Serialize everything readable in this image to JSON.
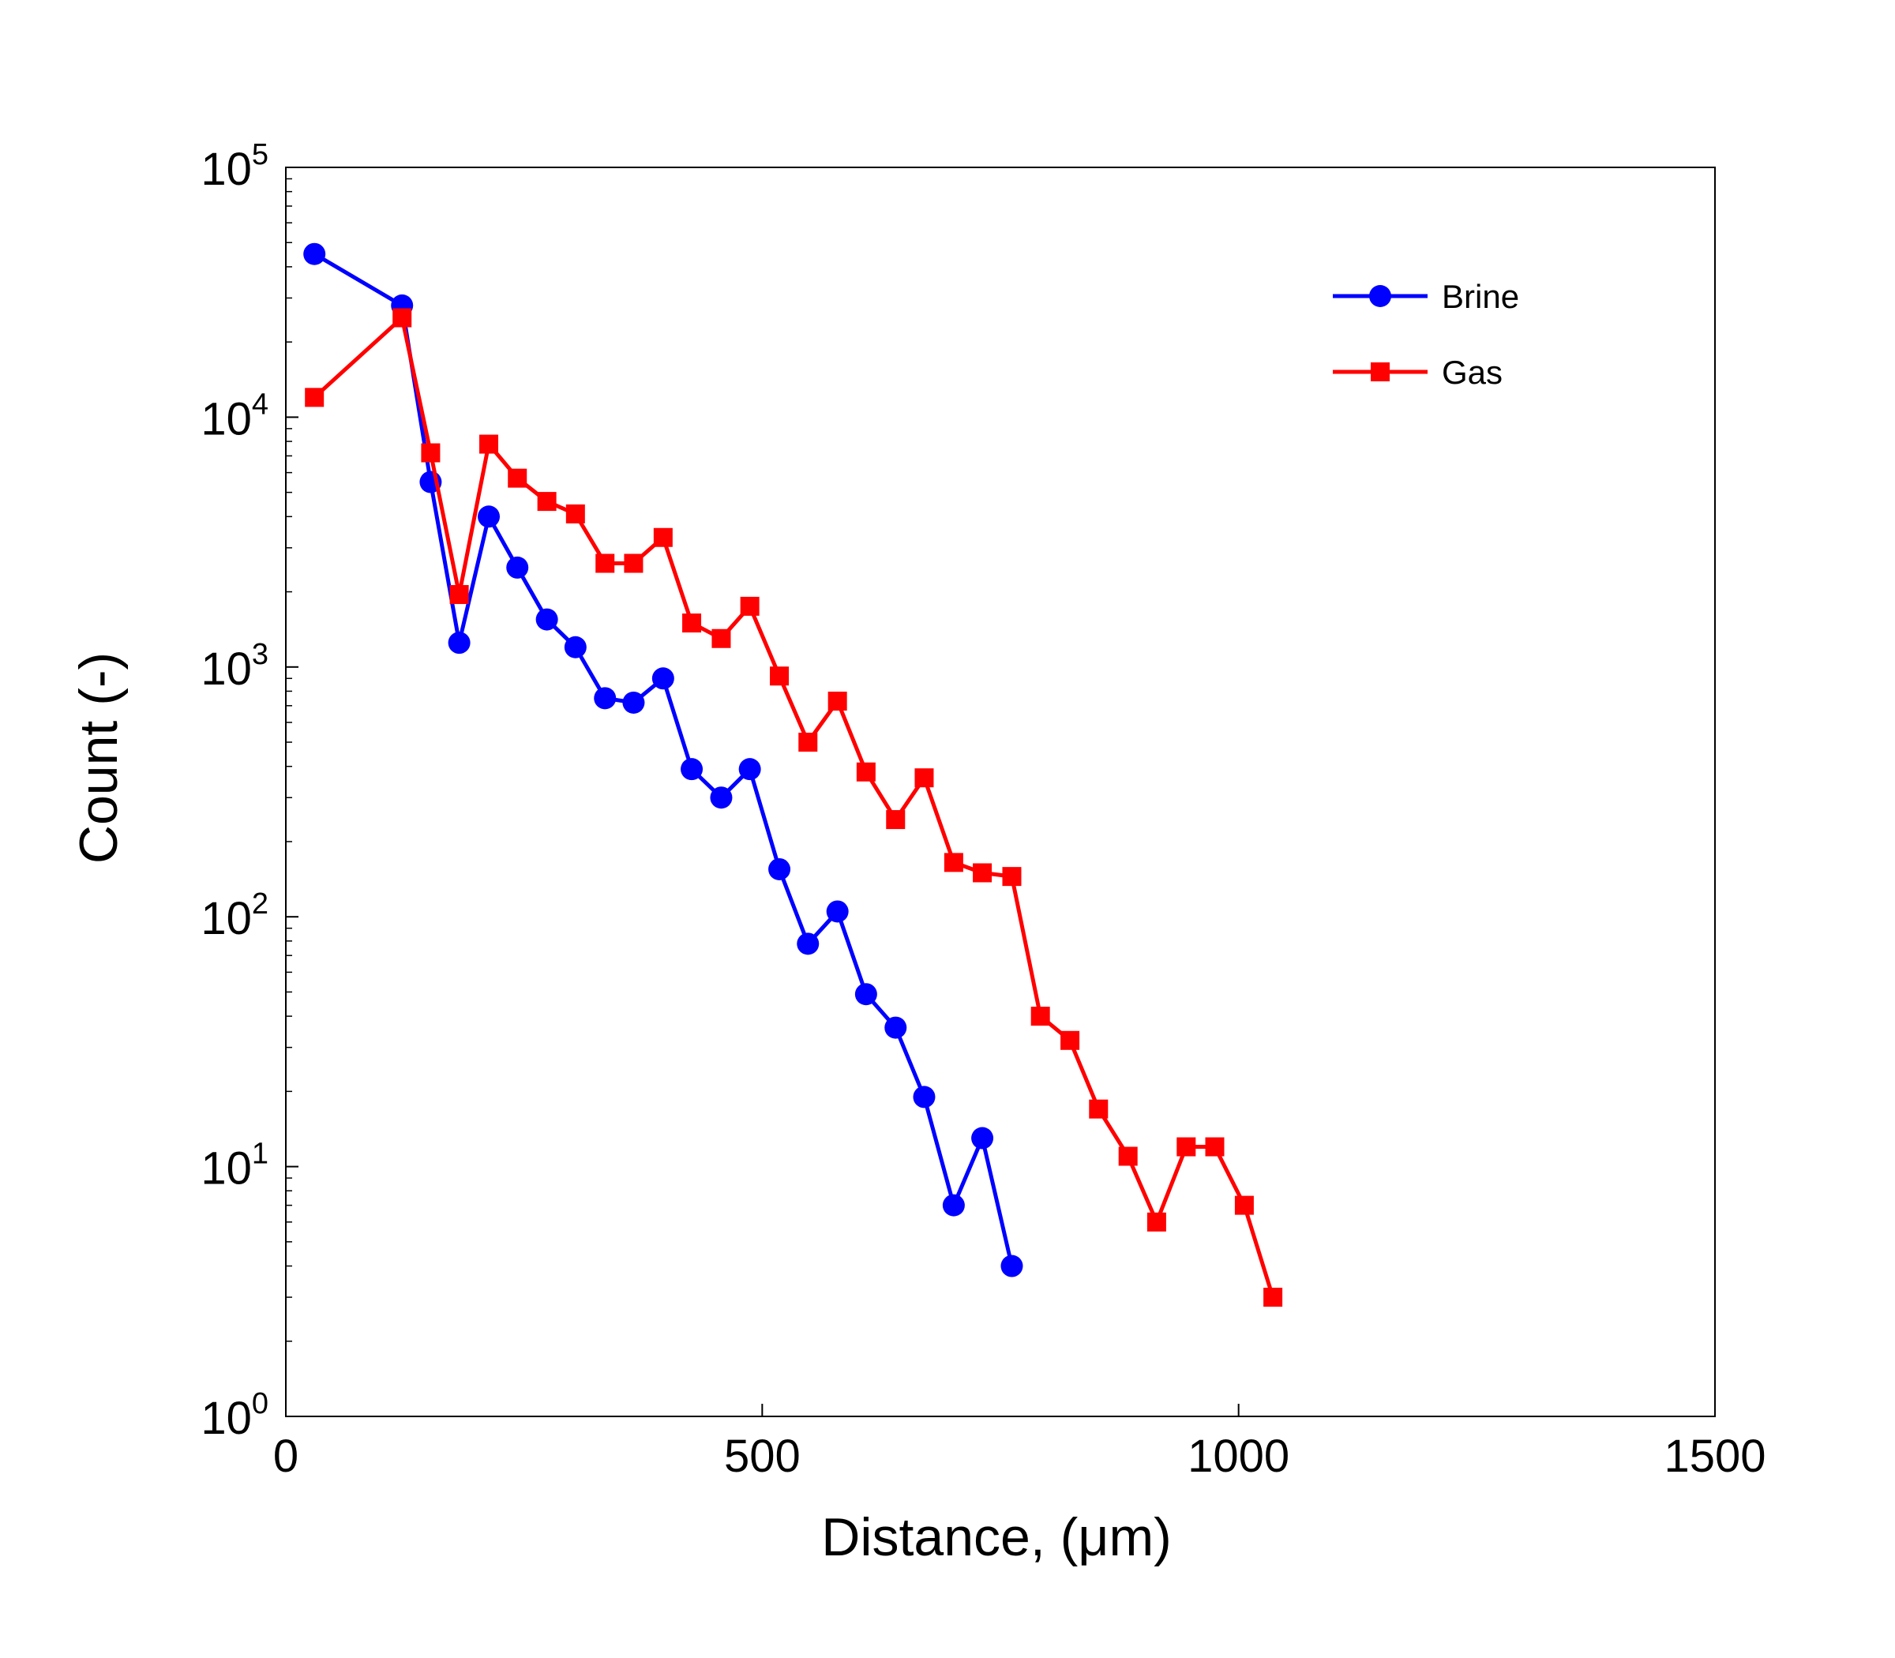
{
  "chart_data": {
    "type": "line",
    "xlabel": "Distance, (μm)",
    "ylabel": "Count (-)",
    "xlim": [
      0,
      1500
    ],
    "ylim": [
      1,
      100000
    ],
    "yscale": "log",
    "grid": false,
    "legend_position": "top-right",
    "x_ticks": [
      "0",
      "500",
      "1000",
      "1500"
    ],
    "y_ticks": [
      {
        "base": "10",
        "exp": "0"
      },
      {
        "base": "10",
        "exp": "1"
      },
      {
        "base": "10",
        "exp": "2"
      },
      {
        "base": "10",
        "exp": "3"
      },
      {
        "base": "10",
        "exp": "4"
      },
      {
        "base": "10",
        "exp": "5"
      }
    ],
    "series": [
      {
        "name": "Brine",
        "color": "#0000ff",
        "marker": "circle",
        "x": [
          30,
          122,
          152,
          182,
          213,
          243,
          274,
          304,
          335,
          365,
          396,
          426,
          457,
          487,
          518,
          548,
          579,
          609,
          640,
          670,
          701,
          731,
          762
        ],
        "y": [
          45000,
          28000,
          5500,
          1250,
          4000,
          2500,
          1550,
          1200,
          750,
          720,
          900,
          390,
          300,
          390,
          155,
          78,
          105,
          49,
          36,
          19,
          7,
          13,
          4
        ]
      },
      {
        "name": "Gas",
        "color": "#ff0000",
        "marker": "square",
        "x": [
          30,
          122,
          152,
          182,
          213,
          243,
          274,
          304,
          335,
          365,
          396,
          426,
          457,
          487,
          518,
          548,
          579,
          609,
          640,
          670,
          701,
          731,
          762,
          792,
          823,
          853,
          884,
          914,
          945,
          975,
          1006,
          1036
        ],
        "y": [
          12000,
          25000,
          7200,
          1950,
          7800,
          5700,
          4600,
          4100,
          2600,
          2600,
          3300,
          1500,
          1300,
          1750,
          920,
          500,
          730,
          380,
          245,
          360,
          165,
          150,
          145,
          40,
          32,
          17,
          11,
          6,
          12,
          12,
          7,
          3
        ]
      }
    ]
  }
}
